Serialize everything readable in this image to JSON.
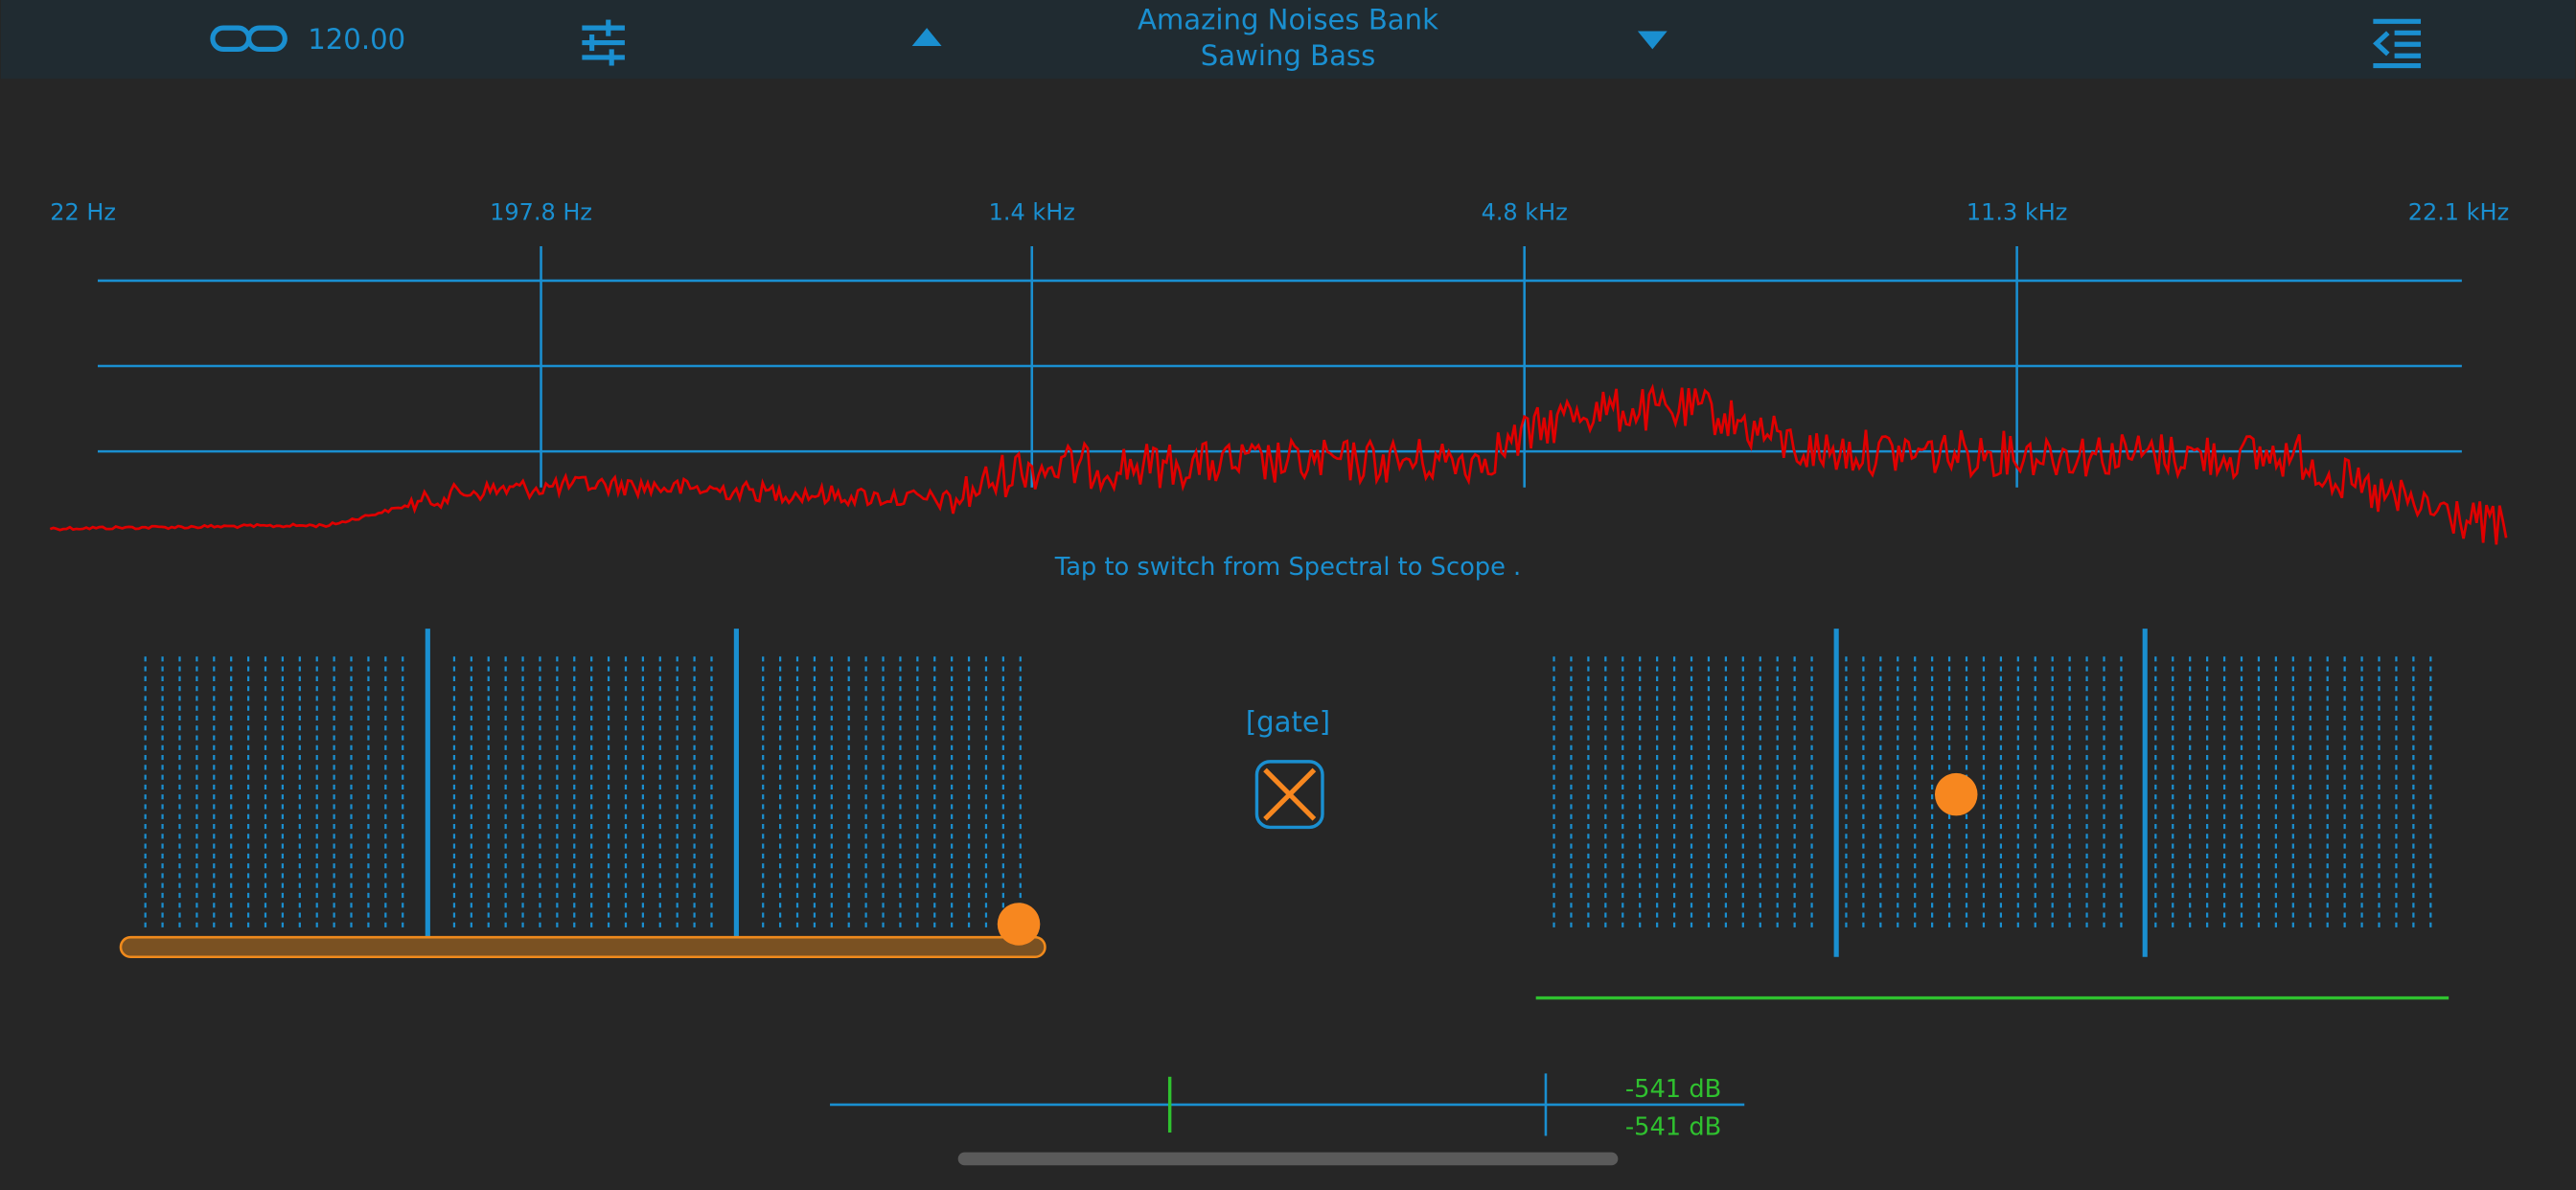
{
  "header": {
    "tempo": "120.00",
    "bank": "Amazing Noises Bank",
    "preset": "Sawing Bass"
  },
  "spectrum": {
    "frequency_labels": [
      "22 Hz",
      "197.8 Hz",
      "1.4 kHz",
      "4.8 kHz",
      "11.3 kHz",
      "22.1 kHz"
    ],
    "hint": "Tap to switch from Spectral to Scope ."
  },
  "gate": {
    "label": "[gate]"
  },
  "meter": {
    "levels": [
      "-541 dB",
      "-541 dB"
    ]
  }
}
